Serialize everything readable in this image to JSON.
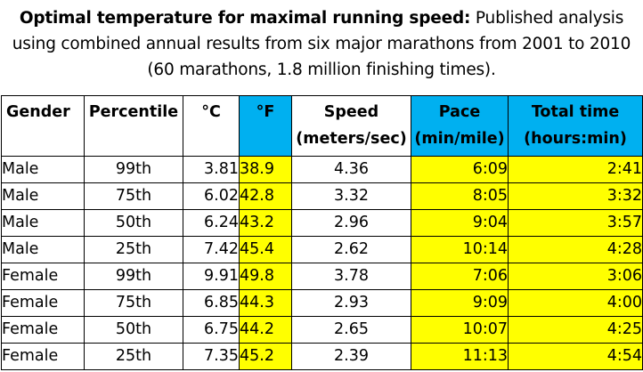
{
  "caption": {
    "bold": "Optimal temperature for maximal running speed:",
    "rest": " Published analysis using combined annual results from six major marathons from 2001 to 2010 (60 marathons, 1.8 million finishing times)."
  },
  "colors": {
    "highlight_yellow": "#ffff00",
    "header_blue": "#00b0f0"
  },
  "table": {
    "headers": {
      "gender": "Gender",
      "percentile": "Percentile",
      "celsius": "°C",
      "fahrenheit": "°F",
      "speed_line1": "Speed",
      "speed_line2": "(meters/sec)",
      "pace_line1": "Pace",
      "pace_line2": "(min/mile)",
      "time_line1": "Total time",
      "time_line2": "(hours:min)"
    },
    "rows": [
      {
        "gender": "Male",
        "percentile": "99th",
        "celsius": "3.81",
        "fahrenheit": "38.9",
        "speed": "4.36",
        "pace": "6:09",
        "time": "2:41"
      },
      {
        "gender": "Male",
        "percentile": "75th",
        "celsius": "6.02",
        "fahrenheit": "42.8",
        "speed": "3.32",
        "pace": "8:05",
        "time": "3:32"
      },
      {
        "gender": "Male",
        "percentile": "50th",
        "celsius": "6.24",
        "fahrenheit": "43.2",
        "speed": "2.96",
        "pace": "9:04",
        "time": "3:57"
      },
      {
        "gender": "Male",
        "percentile": "25th",
        "celsius": "7.42",
        "fahrenheit": "45.4",
        "speed": "2.62",
        "pace": "10:14",
        "time": "4:28"
      },
      {
        "gender": "Female",
        "percentile": "99th",
        "celsius": "9.91",
        "fahrenheit": "49.8",
        "speed": "3.78",
        "pace": "7:06",
        "time": "3:06"
      },
      {
        "gender": "Female",
        "percentile": "75th",
        "celsius": "6.85",
        "fahrenheit": "44.3",
        "speed": "2.93",
        "pace": "9:09",
        "time": "4:00"
      },
      {
        "gender": "Female",
        "percentile": "50th",
        "celsius": "6.75",
        "fahrenheit": "44.2",
        "speed": "2.65",
        "pace": "10:07",
        "time": "4:25"
      },
      {
        "gender": "Female",
        "percentile": "25th",
        "celsius": "7.35",
        "fahrenheit": "45.2",
        "speed": "2.39",
        "pace": "11:13",
        "time": "4:54"
      }
    ]
  }
}
